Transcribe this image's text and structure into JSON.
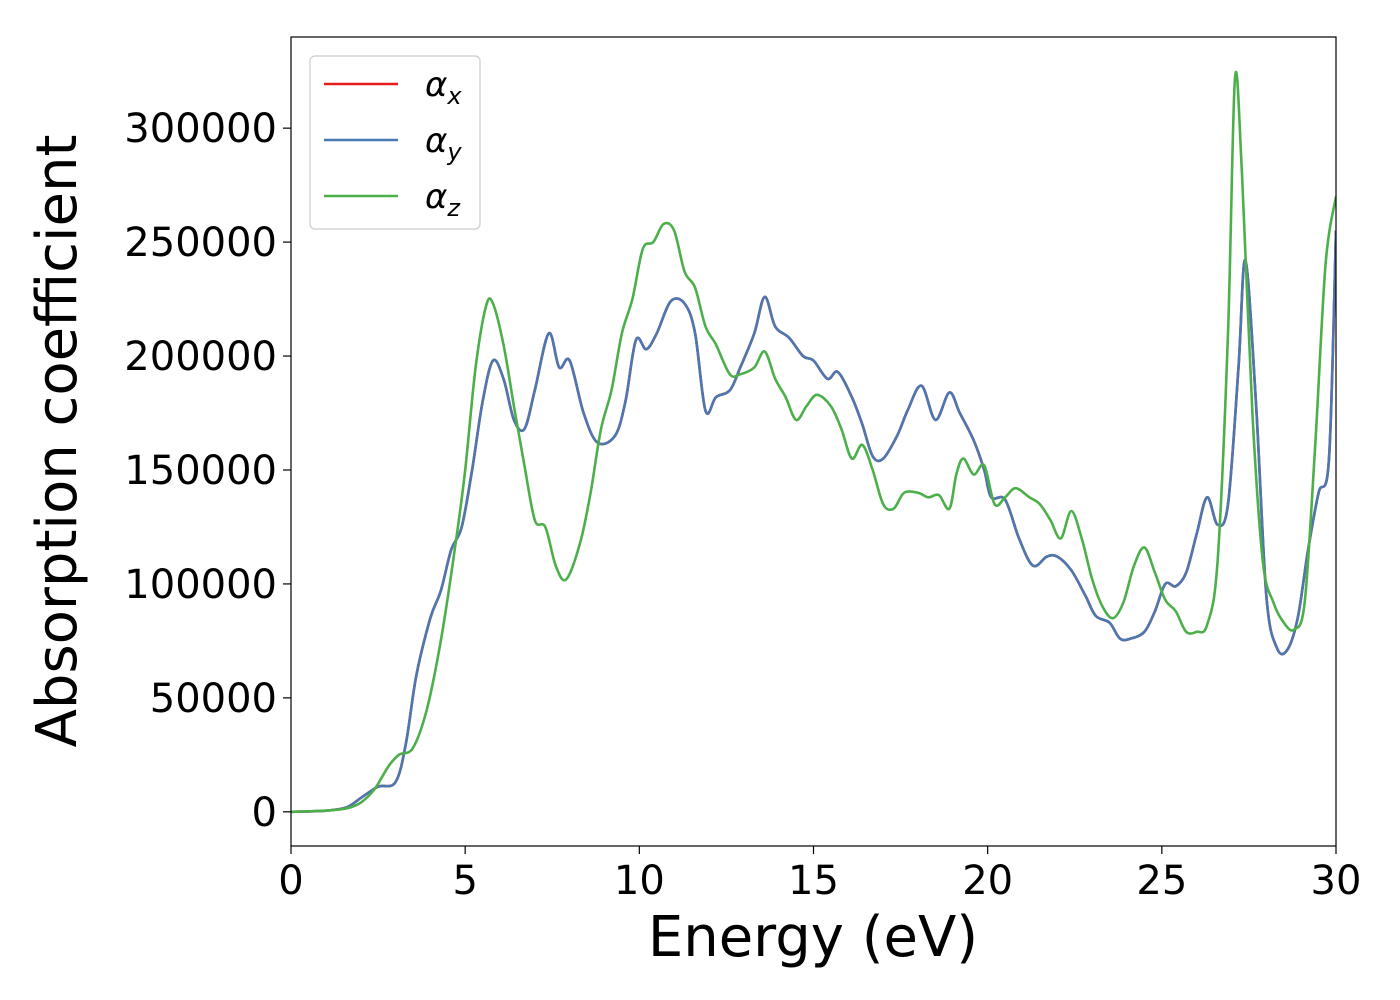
{
  "chart_data": {
    "type": "line",
    "title": "",
    "xlabel": "Energy (eV)",
    "ylabel": "Absorption coefficient",
    "xlim": [
      0,
      30
    ],
    "ylim": [
      -15000,
      340000
    ],
    "xticks": [
      0,
      5,
      10,
      15,
      20,
      25,
      30
    ],
    "xtick_labels": [
      "0",
      "5",
      "10",
      "15",
      "20",
      "25",
      "30"
    ],
    "yticks": [
      0,
      50000,
      100000,
      150000,
      200000,
      250000,
      300000
    ],
    "ytick_labels": [
      "0",
      "50000",
      "100000",
      "150000",
      "200000",
      "250000",
      "300000"
    ],
    "grid": false,
    "legend_position": "top-left",
    "series": [
      {
        "name": "αx",
        "symbol": "α",
        "subscript": "x",
        "color": "#e41a1c",
        "points": [
          [
            0,
            0
          ],
          [
            1.0,
            500
          ],
          [
            1.6,
            2000
          ],
          [
            2.0,
            6000
          ],
          [
            2.5,
            11000
          ],
          [
            3.0,
            13000
          ],
          [
            3.3,
            30000
          ],
          [
            3.6,
            60000
          ],
          [
            4.0,
            85000
          ],
          [
            4.3,
            97000
          ],
          [
            4.6,
            115000
          ],
          [
            4.9,
            125000
          ],
          [
            5.2,
            150000
          ],
          [
            5.5,
            180000
          ],
          [
            5.8,
            198000
          ],
          [
            6.1,
            190000
          ],
          [
            6.4,
            172000
          ],
          [
            6.7,
            168000
          ],
          [
            7.0,
            185000
          ],
          [
            7.4,
            210000
          ],
          [
            7.7,
            195000
          ],
          [
            8.0,
            198000
          ],
          [
            8.4,
            175000
          ],
          [
            8.8,
            162000
          ],
          [
            9.3,
            165000
          ],
          [
            9.6,
            180000
          ],
          [
            9.9,
            207000
          ],
          [
            10.2,
            203000
          ],
          [
            10.5,
            210000
          ],
          [
            10.9,
            224000
          ],
          [
            11.3,
            223000
          ],
          [
            11.6,
            210000
          ],
          [
            11.9,
            176000
          ],
          [
            12.2,
            182000
          ],
          [
            12.6,
            185000
          ],
          [
            12.9,
            195000
          ],
          [
            13.3,
            210000
          ],
          [
            13.6,
            226000
          ],
          [
            13.9,
            213000
          ],
          [
            14.3,
            208000
          ],
          [
            14.7,
            200000
          ],
          [
            15.0,
            198000
          ],
          [
            15.4,
            190000
          ],
          [
            15.7,
            193000
          ],
          [
            16.1,
            182000
          ],
          [
            16.4,
            170000
          ],
          [
            16.7,
            156000
          ],
          [
            17.0,
            155000
          ],
          [
            17.4,
            165000
          ],
          [
            17.7,
            176000
          ],
          [
            18.1,
            187000
          ],
          [
            18.5,
            172000
          ],
          [
            18.9,
            184000
          ],
          [
            19.2,
            175000
          ],
          [
            19.6,
            163000
          ],
          [
            19.9,
            150000
          ],
          [
            20.1,
            138000
          ],
          [
            20.5,
            137000
          ],
          [
            20.9,
            120000
          ],
          [
            21.3,
            108000
          ],
          [
            21.7,
            112000
          ],
          [
            22.0,
            112000
          ],
          [
            22.4,
            106000
          ],
          [
            22.8,
            95000
          ],
          [
            23.1,
            86000
          ],
          [
            23.5,
            83000
          ],
          [
            23.8,
            76000
          ],
          [
            24.1,
            76000
          ],
          [
            24.5,
            79000
          ],
          [
            24.8,
            88000
          ],
          [
            25.1,
            100000
          ],
          [
            25.4,
            99000
          ],
          [
            25.7,
            105000
          ],
          [
            26.0,
            122000
          ],
          [
            26.3,
            138000
          ],
          [
            26.6,
            126000
          ],
          [
            26.9,
            135000
          ],
          [
            27.2,
            195000
          ],
          [
            27.4,
            242000
          ],
          [
            27.7,
            180000
          ],
          [
            28.0,
            95000
          ],
          [
            28.3,
            72000
          ],
          [
            28.6,
            71000
          ],
          [
            28.9,
            85000
          ],
          [
            29.2,
            115000
          ],
          [
            29.5,
            140000
          ],
          [
            29.8,
            155000
          ],
          [
            30.0,
            255000
          ]
        ]
      },
      {
        "name": "αy",
        "symbol": "α",
        "subscript": "y",
        "color": "#4b78b0",
        "points": [
          [
            0,
            0
          ],
          [
            1.0,
            500
          ],
          [
            1.6,
            2000
          ],
          [
            2.0,
            6000
          ],
          [
            2.5,
            11000
          ],
          [
            3.0,
            13000
          ],
          [
            3.3,
            30000
          ],
          [
            3.6,
            60000
          ],
          [
            4.0,
            85000
          ],
          [
            4.3,
            97000
          ],
          [
            4.6,
            115000
          ],
          [
            4.9,
            125000
          ],
          [
            5.2,
            150000
          ],
          [
            5.5,
            180000
          ],
          [
            5.8,
            198000
          ],
          [
            6.1,
            190000
          ],
          [
            6.4,
            172000
          ],
          [
            6.7,
            168000
          ],
          [
            7.0,
            185000
          ],
          [
            7.4,
            210000
          ],
          [
            7.7,
            195000
          ],
          [
            8.0,
            198000
          ],
          [
            8.4,
            175000
          ],
          [
            8.8,
            162000
          ],
          [
            9.3,
            165000
          ],
          [
            9.6,
            180000
          ],
          [
            9.9,
            207000
          ],
          [
            10.2,
            203000
          ],
          [
            10.5,
            210000
          ],
          [
            10.9,
            224000
          ],
          [
            11.3,
            223000
          ],
          [
            11.6,
            210000
          ],
          [
            11.9,
            176000
          ],
          [
            12.2,
            182000
          ],
          [
            12.6,
            185000
          ],
          [
            12.9,
            195000
          ],
          [
            13.3,
            210000
          ],
          [
            13.6,
            226000
          ],
          [
            13.9,
            213000
          ],
          [
            14.3,
            208000
          ],
          [
            14.7,
            200000
          ],
          [
            15.0,
            198000
          ],
          [
            15.4,
            190000
          ],
          [
            15.7,
            193000
          ],
          [
            16.1,
            182000
          ],
          [
            16.4,
            170000
          ],
          [
            16.7,
            156000
          ],
          [
            17.0,
            155000
          ],
          [
            17.4,
            165000
          ],
          [
            17.7,
            176000
          ],
          [
            18.1,
            187000
          ],
          [
            18.5,
            172000
          ],
          [
            18.9,
            184000
          ],
          [
            19.2,
            175000
          ],
          [
            19.6,
            163000
          ],
          [
            19.9,
            150000
          ],
          [
            20.1,
            138000
          ],
          [
            20.5,
            137000
          ],
          [
            20.9,
            120000
          ],
          [
            21.3,
            108000
          ],
          [
            21.7,
            112000
          ],
          [
            22.0,
            112000
          ],
          [
            22.4,
            106000
          ],
          [
            22.8,
            95000
          ],
          [
            23.1,
            86000
          ],
          [
            23.5,
            83000
          ],
          [
            23.8,
            76000
          ],
          [
            24.1,
            76000
          ],
          [
            24.5,
            79000
          ],
          [
            24.8,
            88000
          ],
          [
            25.1,
            100000
          ],
          [
            25.4,
            99000
          ],
          [
            25.7,
            105000
          ],
          [
            26.0,
            122000
          ],
          [
            26.3,
            138000
          ],
          [
            26.6,
            126000
          ],
          [
            26.9,
            135000
          ],
          [
            27.2,
            195000
          ],
          [
            27.4,
            242000
          ],
          [
            27.7,
            180000
          ],
          [
            28.0,
            95000
          ],
          [
            28.3,
            72000
          ],
          [
            28.6,
            71000
          ],
          [
            28.9,
            85000
          ],
          [
            29.2,
            115000
          ],
          [
            29.5,
            140000
          ],
          [
            29.8,
            155000
          ],
          [
            30.0,
            255000
          ]
        ]
      },
      {
        "name": "αz",
        "symbol": "α",
        "subscript": "z",
        "color": "#4daf4a",
        "points": [
          [
            0,
            0
          ],
          [
            1.0,
            500
          ],
          [
            1.6,
            1500
          ],
          [
            2.0,
            4000
          ],
          [
            2.4,
            10000
          ],
          [
            2.8,
            20000
          ],
          [
            3.1,
            25000
          ],
          [
            3.5,
            28000
          ],
          [
            3.9,
            45000
          ],
          [
            4.3,
            75000
          ],
          [
            4.7,
            115000
          ],
          [
            5.0,
            150000
          ],
          [
            5.3,
            195000
          ],
          [
            5.6,
            222000
          ],
          [
            5.8,
            223000
          ],
          [
            6.1,
            205000
          ],
          [
            6.4,
            178000
          ],
          [
            6.7,
            152000
          ],
          [
            7.0,
            128000
          ],
          [
            7.3,
            125000
          ],
          [
            7.6,
            108000
          ],
          [
            7.9,
            102000
          ],
          [
            8.3,
            118000
          ],
          [
            8.6,
            140000
          ],
          [
            8.9,
            168000
          ],
          [
            9.2,
            185000
          ],
          [
            9.5,
            210000
          ],
          [
            9.8,
            225000
          ],
          [
            10.1,
            247000
          ],
          [
            10.4,
            250000
          ],
          [
            10.7,
            258000
          ],
          [
            11.0,
            255000
          ],
          [
            11.3,
            237000
          ],
          [
            11.6,
            230000
          ],
          [
            11.9,
            213000
          ],
          [
            12.2,
            205000
          ],
          [
            12.6,
            192000
          ],
          [
            12.9,
            192000
          ],
          [
            13.3,
            195000
          ],
          [
            13.6,
            202000
          ],
          [
            13.9,
            190000
          ],
          [
            14.2,
            182000
          ],
          [
            14.5,
            172000
          ],
          [
            14.8,
            178000
          ],
          [
            15.1,
            183000
          ],
          [
            15.5,
            178000
          ],
          [
            15.8,
            168000
          ],
          [
            16.1,
            155000
          ],
          [
            16.4,
            161000
          ],
          [
            16.7,
            150000
          ],
          [
            17.0,
            135000
          ],
          [
            17.3,
            133000
          ],
          [
            17.6,
            140000
          ],
          [
            18.0,
            140000
          ],
          [
            18.3,
            138000
          ],
          [
            18.6,
            139000
          ],
          [
            18.9,
            133000
          ],
          [
            19.1,
            148000
          ],
          [
            19.3,
            155000
          ],
          [
            19.6,
            148000
          ],
          [
            19.9,
            152000
          ],
          [
            20.2,
            135000
          ],
          [
            20.5,
            138000
          ],
          [
            20.8,
            142000
          ],
          [
            21.2,
            138000
          ],
          [
            21.5,
            135000
          ],
          [
            21.8,
            128000
          ],
          [
            22.1,
            120000
          ],
          [
            22.4,
            132000
          ],
          [
            22.7,
            120000
          ],
          [
            23.0,
            102000
          ],
          [
            23.3,
            90000
          ],
          [
            23.6,
            85000
          ],
          [
            23.9,
            92000
          ],
          [
            24.2,
            108000
          ],
          [
            24.5,
            116000
          ],
          [
            24.8,
            105000
          ],
          [
            25.1,
            93000
          ],
          [
            25.4,
            88000
          ],
          [
            25.7,
            79000
          ],
          [
            26.0,
            79000
          ],
          [
            26.3,
            82000
          ],
          [
            26.6,
            110000
          ],
          [
            26.9,
            210000
          ],
          [
            27.1,
            322000
          ],
          [
            27.3,
            280000
          ],
          [
            27.6,
            175000
          ],
          [
            27.9,
            110000
          ],
          [
            28.2,
            92000
          ],
          [
            28.5,
            83000
          ],
          [
            28.8,
            80000
          ],
          [
            29.1,
            92000
          ],
          [
            29.4,
            160000
          ],
          [
            29.7,
            240000
          ],
          [
            30.0,
            270000
          ]
        ]
      }
    ]
  }
}
